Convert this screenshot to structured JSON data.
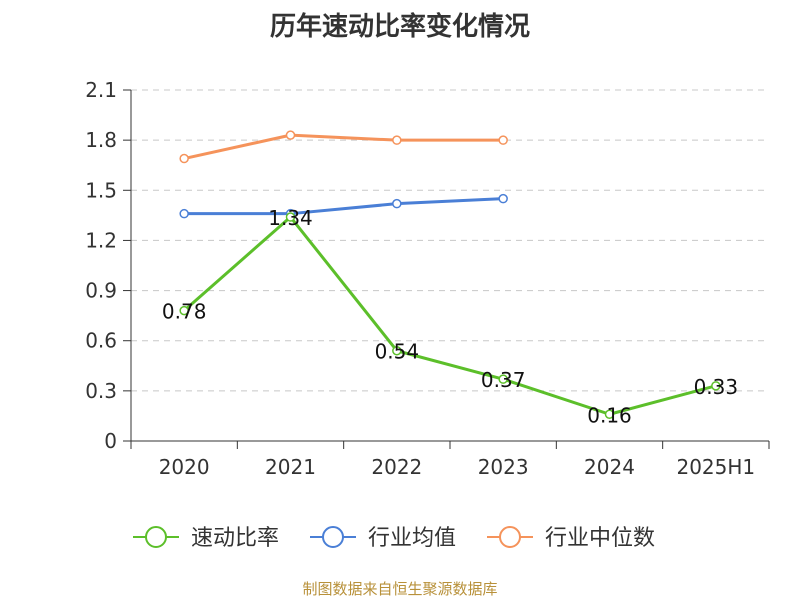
{
  "title": "历年速动比率变化情况",
  "source": "制图数据来自恒生聚源数据库",
  "chart_data": {
    "type": "line",
    "title": "历年速动比率变化情况",
    "xlabel": "",
    "ylabel": "",
    "categories": [
      "2020",
      "2021",
      "2022",
      "2023",
      "2024",
      "2025H1"
    ],
    "ylim": [
      0,
      2.1
    ],
    "yticks": [
      "0",
      "0.3",
      "0.6",
      "0.9",
      "1.2",
      "1.5",
      "1.8",
      "2.1"
    ],
    "grid": true,
    "legend_position": "bottom",
    "series": [
      {
        "name": "速动比率",
        "color": "#5cbf2a",
        "values": [
          0.78,
          1.34,
          0.54,
          0.37,
          0.16,
          0.33
        ],
        "labels": [
          "0.78",
          "1.34",
          "0.54",
          "0.37",
          "0.16",
          "0.33"
        ]
      },
      {
        "name": "行业均值",
        "color": "#4a7fd6",
        "values": [
          1.36,
          1.36,
          1.42,
          1.45,
          null,
          null
        ]
      },
      {
        "name": "行业中位数",
        "color": "#f5935b",
        "values": [
          1.69,
          1.83,
          1.8,
          1.8,
          null,
          null
        ]
      }
    ]
  }
}
